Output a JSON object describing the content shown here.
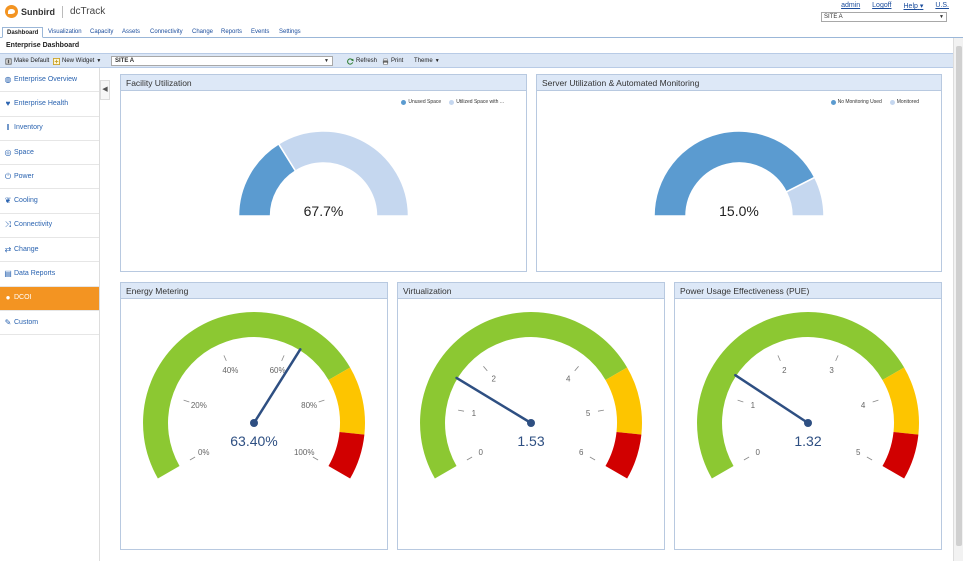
{
  "app": {
    "brand": "Sunbird",
    "product": "dcTrack"
  },
  "top_links": [
    "admin",
    "Logoff",
    "Help",
    "U.S."
  ],
  "site_selector": {
    "value": "SITE A"
  },
  "tabs": [
    "Dashboard",
    "Visualization",
    "Capacity",
    "Assets",
    "Connectivity",
    "Change",
    "Reports",
    "Events",
    "Settings"
  ],
  "page_title": "Enterprise Dashboard",
  "toolbar": {
    "make_default": "Make Default",
    "new_widget": "New Widget",
    "site_value": "SITE A",
    "refresh": "Refresh",
    "print": "Print",
    "theme": "Theme"
  },
  "sidebar": [
    {
      "label": "Enterprise Overview",
      "icon": "globe-icon",
      "active": false
    },
    {
      "label": "Enterprise Health",
      "icon": "heart-icon",
      "active": false
    },
    {
      "label": "Inventory",
      "icon": "barcode-icon",
      "active": false
    },
    {
      "label": "Space",
      "icon": "circle-arrow-icon",
      "active": false
    },
    {
      "label": "Power",
      "icon": "power-icon",
      "active": false
    },
    {
      "label": "Cooling",
      "icon": "flame-icon",
      "active": false
    },
    {
      "label": "Connectivity",
      "icon": "shuffle-icon",
      "active": false
    },
    {
      "label": "Change",
      "icon": "swap-icon",
      "active": false
    },
    {
      "label": "Data Reports",
      "icon": "report-icon",
      "active": false
    },
    {
      "label": "DCOI",
      "icon": "dot-icon",
      "active": true
    },
    {
      "label": "Custom",
      "icon": "wrench-icon",
      "active": false
    }
  ],
  "panels": {
    "facility": {
      "title": "Facility Utilization",
      "legend": [
        "Unused Space",
        "Utilized Space with ..."
      ],
      "value_label": "67.7%"
    },
    "server": {
      "title": "Server Utilization & Automated Monitoring",
      "legend": [
        "No Monitoring Used",
        "Monitored"
      ],
      "value_label": "15.0%"
    },
    "energy": {
      "title": "Energy Metering",
      "value_label": "63.40%",
      "ticks": [
        "0%",
        "20%",
        "40%",
        "60%",
        "80%",
        "100%"
      ]
    },
    "virtualization": {
      "title": "Virtualization",
      "value_label": "1.53",
      "ticks": [
        "0",
        "1",
        "2",
        "4",
        "5",
        "6"
      ]
    },
    "pue": {
      "title": "Power Usage Effectiveness (PUE)",
      "value_label": "1.32",
      "ticks": [
        "0",
        "1",
        "2",
        "3",
        "4",
        "5"
      ]
    }
  },
  "colors": {
    "dark_blue": "#5b9bd0",
    "light_blue": "#c5d7ef",
    "green": "#8cc832",
    "yellow": "#fdc500",
    "red": "#d10000",
    "needle": "#2e4f82",
    "accent_orange": "#f39422"
  },
  "chart_data": [
    {
      "type": "pie",
      "subtype": "semi-donut",
      "title": "Facility Utilization",
      "categories": [
        "Unused Space",
        "Utilized Space with ..."
      ],
      "values": [
        32.3,
        67.7
      ]
    },
    {
      "type": "pie",
      "subtype": "semi-donut",
      "title": "Server Utilization & Automated Monitoring",
      "categories": [
        "No Monitoring Used",
        "Monitored"
      ],
      "values": [
        85.0,
        15.0
      ]
    },
    {
      "type": "gauge",
      "title": "Energy Metering",
      "value": 63.4,
      "range": [
        0,
        100
      ],
      "bands": [
        {
          "from": 0,
          "to": 75,
          "color": "green"
        },
        {
          "from": 75,
          "to": 90,
          "color": "yellow"
        },
        {
          "from": 90,
          "to": 100,
          "color": "red"
        }
      ]
    },
    {
      "type": "gauge",
      "title": "Virtualization",
      "value": 1.53,
      "range": [
        0,
        6
      ],
      "bands": [
        {
          "from": 0,
          "to": 4.5,
          "color": "green"
        },
        {
          "from": 4.5,
          "to": 5.4,
          "color": "yellow"
        },
        {
          "from": 5.4,
          "to": 6,
          "color": "red"
        }
      ]
    },
    {
      "type": "gauge",
      "title": "Power Usage Effectiveness (PUE)",
      "value": 1.32,
      "range": [
        0,
        5
      ],
      "bands": [
        {
          "from": 0,
          "to": 3.75,
          "color": "green"
        },
        {
          "from": 3.75,
          "to": 4.5,
          "color": "yellow"
        },
        {
          "from": 4.5,
          "to": 5,
          "color": "red"
        }
      ]
    }
  ]
}
